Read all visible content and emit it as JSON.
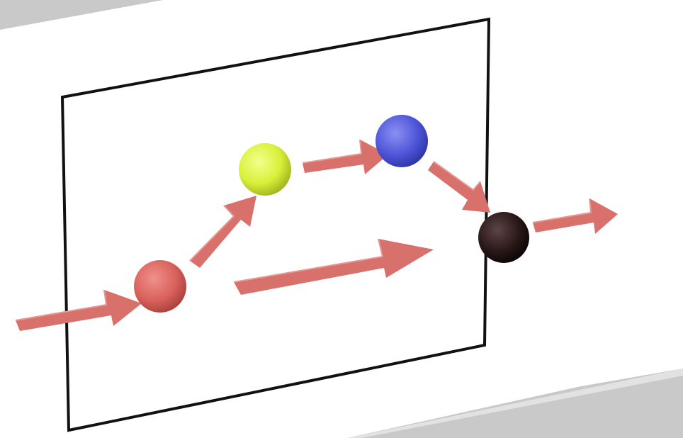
{
  "diagram": {
    "colors": {
      "background": "#ffffff",
      "floor_gray": "#c9c9c9",
      "frame_stroke": "#111111",
      "arrow_fill": "#d8706c",
      "arrow_highlight": "#e69893"
    },
    "nodes": [
      {
        "id": "red-node",
        "color": "#d9625c",
        "highlight": "#f0908a",
        "shadow": "#a83f3a"
      },
      {
        "id": "yellow-node",
        "color": "#d9f03a",
        "highlight": "#f3ff8c",
        "shadow": "#9fb21a"
      },
      {
        "id": "blue-node",
        "color": "#4e56d8",
        "highlight": "#8b90f3",
        "shadow": "#2d33a4"
      },
      {
        "id": "black-node",
        "color": "#2a1818",
        "highlight": "#5c4545",
        "shadow": "#0b0404"
      }
    ],
    "arrows": [
      {
        "id": "arrow-in-to-red"
      },
      {
        "id": "arrow-red-to-yellow"
      },
      {
        "id": "arrow-yellow-to-blue"
      },
      {
        "id": "arrow-blue-to-black"
      },
      {
        "id": "arrow-red-to-black-skip"
      },
      {
        "id": "arrow-black-out"
      }
    ]
  }
}
